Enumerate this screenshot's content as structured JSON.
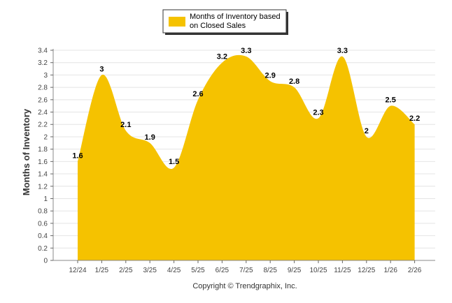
{
  "chart_data": {
    "type": "area",
    "title": "",
    "xlabel": "",
    "ylabel": "Months of Inventory",
    "ylim": [
      0,
      3.4
    ],
    "ytick_step": 0.2,
    "grid": true,
    "legend_position": "top-center",
    "categories": [
      "12/24",
      "1/25",
      "2/25",
      "3/25",
      "4/25",
      "5/25",
      "6/25",
      "7/25",
      "8/25",
      "9/25",
      "10/25",
      "11/25",
      "12/25",
      "1/26",
      "2/26"
    ],
    "series": [
      {
        "name": "Months of Inventory based on Closed Sales",
        "legend_lines": [
          "Months of Inventory based",
          "on Closed Sales"
        ],
        "color": "#F5C200",
        "values": [
          1.6,
          3,
          2.1,
          1.9,
          1.5,
          2.6,
          3.2,
          3.3,
          2.9,
          2.8,
          2.3,
          3.3,
          2,
          2.5,
          2.2
        ],
        "labels": [
          "1.6",
          "3",
          "2.1",
          "1.9",
          "1.5",
          "2.6",
          "3.2",
          "3.3",
          "2.9",
          "2.8",
          "2.3",
          "3.3",
          "2",
          "2.5",
          "2.2"
        ]
      }
    ]
  },
  "footer": "Copyright © Trendgraphix, Inc."
}
